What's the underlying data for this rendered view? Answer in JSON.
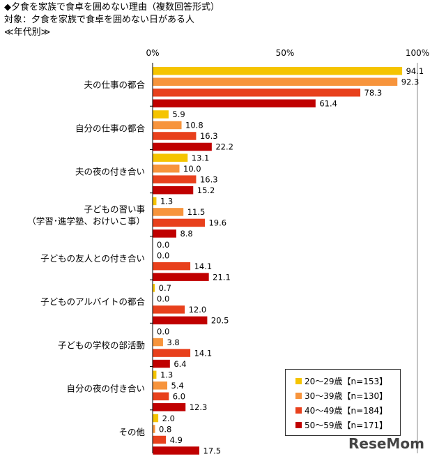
{
  "header": {
    "title": "◆夕食を家族で食卓を囲めない理由（複数回答形式）",
    "subtitle": "対象：夕食を家族で食卓を囲めない日がある人",
    "group": "≪年代別≫"
  },
  "legend": [
    {
      "label": "20〜29歳【n=153】",
      "color": "#f5c400"
    },
    {
      "label": "30〜39歳【n=130】",
      "color": "#f7943c"
    },
    {
      "label": "40〜49歳【n=184】",
      "color": "#e8401c"
    },
    {
      "label": "50〜59歳【n=171】",
      "color": "#c00000"
    }
  ],
  "logo": "ReseMom",
  "chart_data": {
    "type": "bar",
    "orientation": "horizontal",
    "xlim": [
      0,
      100
    ],
    "ticks": [
      "0%",
      "50%",
      "100%"
    ],
    "categories": [
      {
        "lines": [
          "夫の仕事の都合"
        ]
      },
      {
        "lines": [
          "自分の仕事の都合"
        ]
      },
      {
        "lines": [
          "夫の夜の付き合い"
        ]
      },
      {
        "lines": [
          "子どもの習い事",
          "（学習･進学塾、おけいこ事）"
        ]
      },
      {
        "lines": [
          "子どもの友人との付き合い"
        ]
      },
      {
        "lines": [
          "子どものアルバイトの都合"
        ]
      },
      {
        "lines": [
          "子どもの学校の部活動"
        ]
      },
      {
        "lines": [
          "自分の夜の付き合い"
        ]
      },
      {
        "lines": [
          "その他"
        ]
      }
    ],
    "series": [
      {
        "name": "20〜29歳【n=153】",
        "values": [
          94.1,
          5.9,
          13.1,
          1.3,
          0.0,
          0.7,
          0.0,
          1.3,
          2.0
        ],
        "labels": [
          "94.1",
          "5.9",
          "13.1",
          "1.3",
          "0.0",
          "0.7",
          "0.0",
          "1.3",
          "2.0"
        ]
      },
      {
        "name": "30〜39歳【n=130】",
        "values": [
          92.3,
          10.8,
          10.0,
          11.5,
          0.0,
          0.0,
          3.8,
          5.4,
          0.8
        ],
        "labels": [
          "92.3",
          "10.8",
          "10.0",
          "11.5",
          "0.0",
          "0.0",
          "3.8",
          "5.4",
          "0.8"
        ]
      },
      {
        "name": "40〜49歳【n=184】",
        "values": [
          78.3,
          16.3,
          16.3,
          19.6,
          14.1,
          12.0,
          14.1,
          6.0,
          4.9
        ],
        "labels": [
          "78.3",
          "16.3",
          "16.3",
          "19.6",
          "14.1",
          "12.0",
          "14.1",
          "6.0",
          "4.9"
        ]
      },
      {
        "name": "50〜59歳【n=171】",
        "values": [
          61.4,
          22.2,
          15.2,
          8.8,
          21.1,
          20.5,
          6.4,
          12.3,
          17.5
        ],
        "labels": [
          "61.4",
          "22.2",
          "15.2",
          "8.8",
          "21.1",
          "20.5",
          "6.4",
          "12.3",
          "17.5"
        ]
      }
    ]
  }
}
